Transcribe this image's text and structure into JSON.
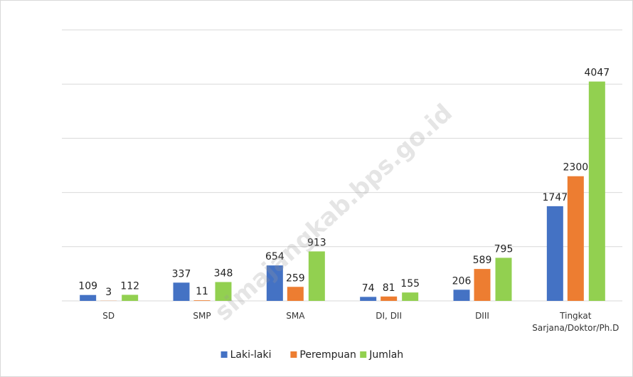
{
  "chart_data": {
    "type": "bar",
    "categories": [
      "SD",
      "SMP",
      "SMA",
      "DI, DII",
      "DIII",
      "Tingkat Sarjana/Doktor/Ph.D"
    ],
    "series": [
      {
        "name": "Laki-laki",
        "color": "#4472c4",
        "values": [
          109,
          337,
          654,
          74,
          206,
          1747
        ]
      },
      {
        "name": "Perempuan",
        "color": "#ed7d31",
        "values": [
          3,
          11,
          259,
          81,
          589,
          2300
        ]
      },
      {
        "name": "Jumlah",
        "color": "#92d050",
        "values": [
          112,
          348,
          913,
          155,
          795,
          4047
        ]
      }
    ],
    "ylim": [
      0,
      5000
    ],
    "yticks": [
      0,
      1000,
      2000,
      3000,
      4000,
      5000
    ],
    "grid": true,
    "legend": "bottom",
    "watermark": "simajangkab.bps.go.id"
  }
}
